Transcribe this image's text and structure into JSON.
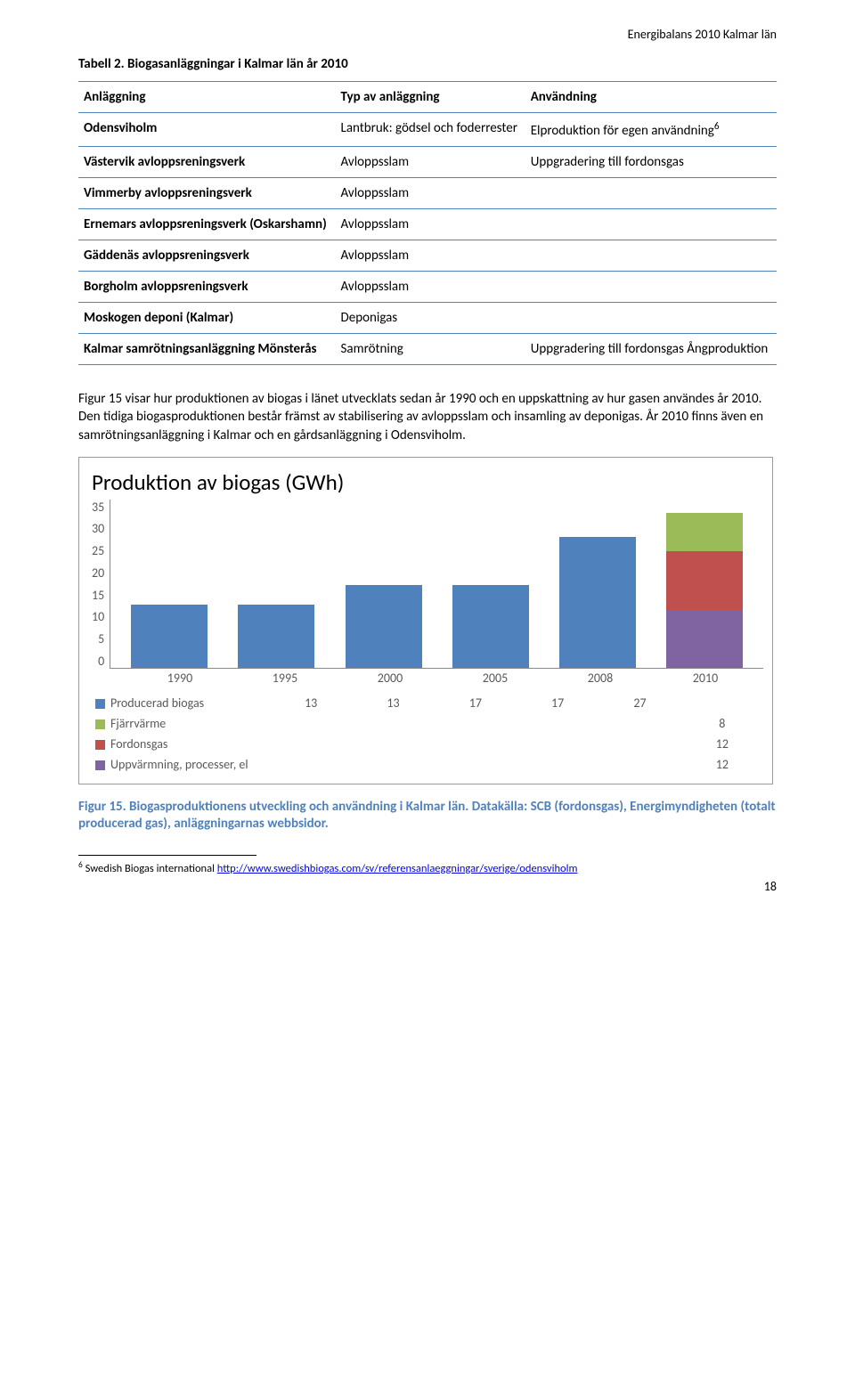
{
  "header": {
    "right": "Energibalans 2010 Kalmar län"
  },
  "table": {
    "caption": "Tabell 2. Biogasanläggningar i Kalmar län år 2010",
    "columns": [
      "Anläggning",
      "Typ av anläggning",
      "Användning"
    ],
    "rows": [
      {
        "c0": "Odensviholm",
        "c1": "Lantbruk: gödsel och foderrester",
        "c2": "Elproduktion för egen användning",
        "sup": "6"
      },
      {
        "c0": "Västervik avloppsreningsverk",
        "c1": "Avloppsslam",
        "c2": "Uppgradering till fordonsgas"
      },
      {
        "c0": "Vimmerby avloppsreningsverk",
        "c1": "Avloppsslam",
        "c2": ""
      },
      {
        "c0": "Ernemars avloppsreningsverk (Oskarshamn)",
        "c1": "Avloppsslam",
        "c2": ""
      },
      {
        "c0": "Gäddenäs avloppsreningsverk",
        "c1": "Avloppsslam",
        "c2": ""
      },
      {
        "c0": "Borgholm avloppsreningsverk",
        "c1": "Avloppsslam",
        "c2": ""
      },
      {
        "c0": "Moskogen deponi (Kalmar)",
        "c1": "Deponigas",
        "c2": ""
      },
      {
        "c0": "Kalmar samrötningsanläggning Mönsterås",
        "c1": "Samrötning",
        "c2": "Uppgradering till fordonsgas Ångproduktion"
      }
    ]
  },
  "bodyText": "Figur 15 visar hur produktionen av biogas i länet utvecklats sedan år 1990 och en uppskattning av hur gasen användes år 2010. Den tidiga biogasproduktionen består främst av stabilisering av avloppsslam och insamling av deponigas. År 2010 finns även en samrötningsanläggning i Kalmar och en gårdsanläggning i Odensviholm.",
  "chart": {
    "title": "Produktion av biogas (GWh)",
    "categories": [
      "1990",
      "1995",
      "2000",
      "2005",
      "2008",
      "2010"
    ],
    "y": {
      "min": 0,
      "max": 35,
      "step": 5,
      "ticks": [
        "35",
        "30",
        "25",
        "20",
        "15",
        "10",
        "5",
        "0"
      ]
    },
    "series": [
      {
        "key": "producerad",
        "label": "Producerad biogas",
        "color": "#4f81bd",
        "values": [
          13,
          13,
          17,
          17,
          27,
          null
        ]
      },
      {
        "key": "fjarrvarme",
        "label": "Fjärrvärme",
        "color": "#9bbb59",
        "values": [
          null,
          null,
          null,
          null,
          null,
          8
        ]
      },
      {
        "key": "fordonsgas",
        "label": "Fordonsgas",
        "color": "#c0504d",
        "values": [
          null,
          null,
          null,
          null,
          null,
          12
        ]
      },
      {
        "key": "uppvarmning",
        "label": "Uppvärmning, processer, el",
        "color": "#8064a2",
        "values": [
          null,
          null,
          null,
          null,
          null,
          12
        ]
      }
    ],
    "background_color": "#ffffff",
    "axis_color": "#888888",
    "tick_fontsize": 14,
    "title_fontsize": 25
  },
  "figureCaption": "Figur 15. Biogasproduktionens utveckling och användning i Kalmar län. Datakälla: SCB (fordonsgas), Energimyndigheten (totalt producerad gas), anläggningarnas webbsidor.",
  "footnote": {
    "num": "6",
    "text": "Swedish Biogas international ",
    "linkText": "http://www.swedishbiogas.com/sv/referensanlaeggningar/sverige/odensviholm"
  },
  "pageNumber": "18"
}
